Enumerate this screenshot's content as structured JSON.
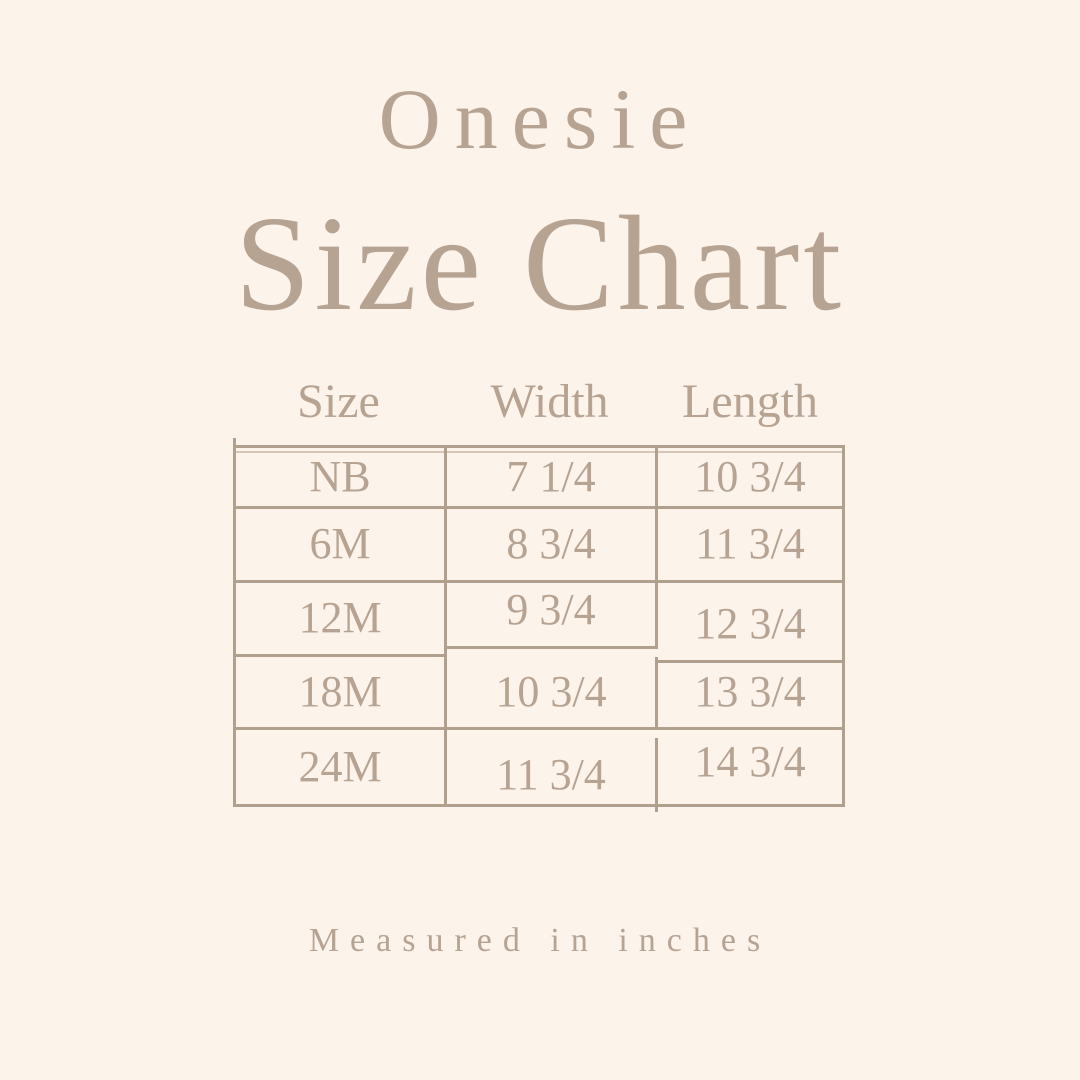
{
  "colors": {
    "background": "#fcf3eb",
    "text": "#b6a392",
    "table_border": "#b2a08f"
  },
  "header": {
    "title": "Onesie",
    "subtitle": "Size Chart"
  },
  "size_table": {
    "column_headers": [
      "Size",
      "Width",
      "Length"
    ],
    "rows": [
      {
        "size": "NB",
        "width": "7 1/4",
        "length": "10 3/4"
      },
      {
        "size": "6M",
        "width": "8 3/4",
        "length": "11 3/4"
      },
      {
        "size": "12M",
        "width": "9 3/4",
        "length": "12 3/4"
      },
      {
        "size": "18M",
        "width": "10 3/4",
        "length": "13 3/4"
      },
      {
        "size": "24M",
        "width": "11 3/4",
        "length": "14 3/4"
      }
    ]
  },
  "footer": {
    "note": "Measured in inches"
  },
  "chart_data": {
    "type": "table",
    "title": "Onesie Size Chart",
    "columns": [
      "Size",
      "Width",
      "Length"
    ],
    "rows": [
      [
        "NB",
        "7 1/4",
        "10 3/4"
      ],
      [
        "6M",
        "8 3/4",
        "11 3/4"
      ],
      [
        "12M",
        "9 3/4",
        "12 3/4"
      ],
      [
        "18M",
        "10 3/4",
        "13 3/4"
      ],
      [
        "24M",
        "11 3/4",
        "14 3/4"
      ]
    ],
    "units": "inches",
    "notes": "Onesie garment size chart; all measurements in inches"
  }
}
